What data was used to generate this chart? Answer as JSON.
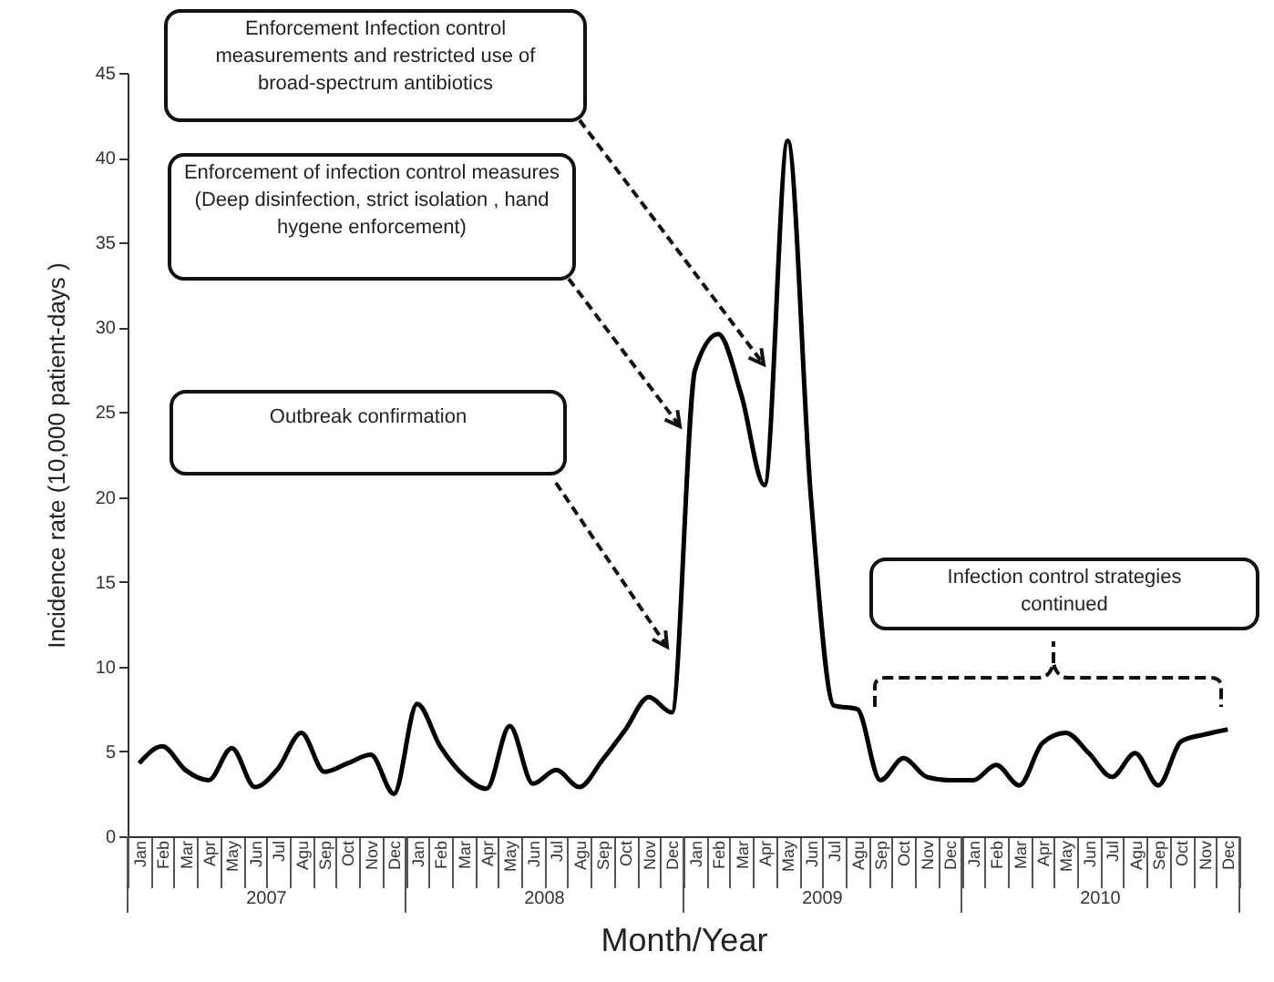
{
  "chart_data": {
    "type": "line",
    "xlabel": "Month/Year",
    "ylabel": "Incidence rate (10,000 patient-days )",
    "categories": [
      "Jan",
      "Feb",
      "Mar",
      "Apr",
      "May",
      "Jun",
      "Jul",
      "Agu",
      "Sep",
      "Oct",
      "Nov",
      "Dec",
      "Jan",
      "Feb",
      "Mar",
      "Apr",
      "May",
      "Jun",
      "Jul",
      "Agu",
      "Sep",
      "Oct",
      "Nov",
      "Dec",
      "Jan",
      "Feb",
      "Mar",
      "Apr",
      "May",
      "Jun",
      "Jul",
      "Agu",
      "Sep",
      "Oct",
      "Nov",
      "Dec",
      "Jan",
      "Feb",
      "Mar",
      "Apr",
      "May",
      "Jun",
      "Jul",
      "Agu",
      "Sep",
      "Oct",
      "Nov",
      "Dec"
    ],
    "values": [
      4.3,
      5.3,
      3.9,
      3.3,
      5.2,
      2.9,
      4.0,
      6.1,
      3.8,
      4.3,
      4.8,
      2.5,
      7.8,
      5.3,
      3.6,
      2.8,
      6.5,
      3.1,
      3.9,
      2.9,
      4.5,
      6.3,
      8.2,
      7.3,
      27.5,
      29.6,
      26,
      20.7,
      41,
      20,
      7.7,
      7.5,
      3.3,
      4.6,
      3.5,
      3.3,
      3.3,
      4.2,
      3.0,
      5.5,
      6.1,
      4.9,
      3.5,
      4.9,
      3.0,
      5.6,
      6.0,
      6.3
    ],
    "color": "#000000",
    "ylim": [
      0,
      45
    ],
    "yticks": [
      0,
      5,
      10,
      15,
      20,
      25,
      30,
      35,
      40,
      45
    ],
    "annotations": [
      "Enforcement Infection control measurements and restricted use  of broad-spectrum antibiotics",
      "Enforcement of  infection control measures (Deep disinfection, strict isolation , hand hygene enforcement)",
      "Outbreak confirmation",
      "Infection control strategies continued",
      "2007",
      "2008",
      "2009",
      "2010"
    ]
  }
}
